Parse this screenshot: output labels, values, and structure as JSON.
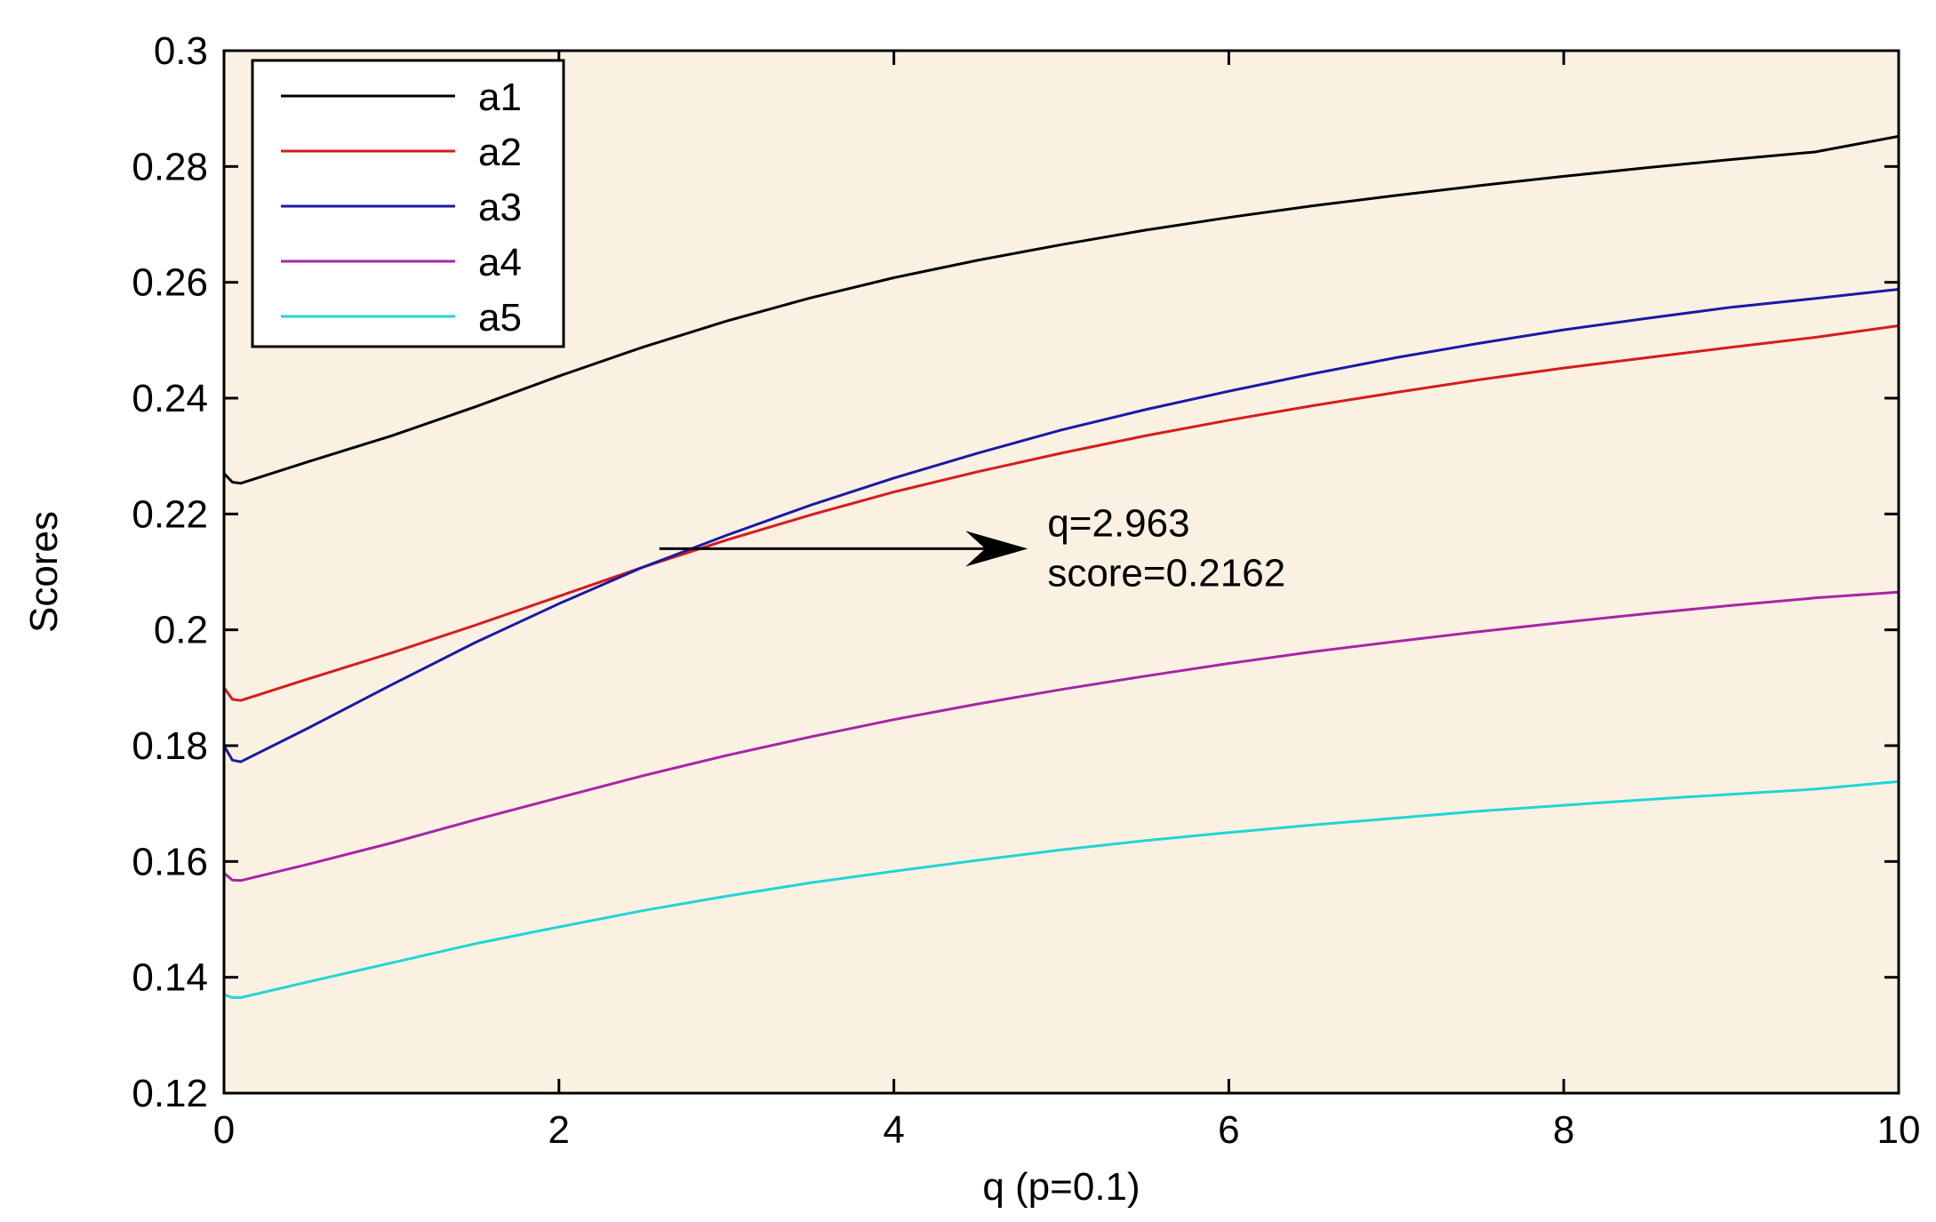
{
  "chart_data": {
    "type": "line",
    "xlabel": "q (p=0.1)",
    "ylabel": "Scores",
    "xlim": [
      0,
      10
    ],
    "ylim": [
      0.12,
      0.3
    ],
    "xticks": [
      0,
      2,
      4,
      6,
      8,
      10
    ],
    "yticks": [
      0.12,
      0.14,
      0.16,
      0.18,
      0.2,
      0.22,
      0.24,
      0.26,
      0.28,
      0.3
    ],
    "xtick_labels": [
      "0",
      "2",
      "4",
      "6",
      "8",
      "10"
    ],
    "ytick_labels": [
      "0.12",
      "0.14",
      "0.16",
      "0.18",
      "0.2",
      "0.22",
      "0.24",
      "0.26",
      "0.28",
      "0.3"
    ],
    "grid": false,
    "box": true,
    "legend_position": "top-left",
    "background_color": "#fbf1e3",
    "x": [
      0,
      0.05,
      0.1,
      0.5,
      1,
      1.5,
      2,
      2.5,
      3,
      3.5,
      4,
      4.5,
      5,
      5.5,
      6,
      6.5,
      7,
      7.5,
      8,
      8.5,
      9,
      9.5,
      10
    ],
    "series": [
      {
        "name": "a1",
        "color": "#000000",
        "values": [
          0.227,
          0.2255,
          0.2253,
          0.229,
          0.2335,
          0.2385,
          0.2438,
          0.2488,
          0.2533,
          0.2573,
          0.2608,
          0.2638,
          0.2665,
          0.269,
          0.2712,
          0.2732,
          0.275,
          0.2767,
          0.2783,
          0.2798,
          0.2812,
          0.2825,
          0.2852
        ]
      },
      {
        "name": "a2",
        "color": "#d81b1b",
        "values": [
          0.19,
          0.188,
          0.1878,
          0.1915,
          0.196,
          0.2008,
          0.2058,
          0.2108,
          0.2155,
          0.2198,
          0.2238,
          0.2273,
          0.2305,
          0.2335,
          0.2362,
          0.2387,
          0.241,
          0.2432,
          0.2452,
          0.247,
          0.2488,
          0.2505,
          0.2525
        ]
      },
      {
        "name": "a3",
        "color": "#1a1aa6",
        "values": [
          0.18,
          0.1775,
          0.1772,
          0.183,
          0.1905,
          0.1978,
          0.2045,
          0.2108,
          0.2163,
          0.2215,
          0.2262,
          0.2305,
          0.2345,
          0.238,
          0.2412,
          0.2442,
          0.247,
          0.2495,
          0.2518,
          0.2538,
          0.2557,
          0.2572,
          0.2588
        ]
      },
      {
        "name": "a4",
        "color": "#a626a6",
        "values": [
          0.158,
          0.1568,
          0.1567,
          0.1595,
          0.1632,
          0.1672,
          0.171,
          0.1748,
          0.1783,
          0.1815,
          0.1845,
          0.1872,
          0.1897,
          0.192,
          0.1942,
          0.1962,
          0.198,
          0.1997,
          0.2013,
          0.2028,
          0.2042,
          0.2055,
          0.2065
        ]
      },
      {
        "name": "a5",
        "color": "#1fd6d6",
        "values": [
          0.137,
          0.1365,
          0.1365,
          0.1392,
          0.1425,
          0.1458,
          0.1487,
          0.1515,
          0.154,
          0.1563,
          0.1583,
          0.1602,
          0.162,
          0.1636,
          0.165,
          0.1663,
          0.1675,
          0.1687,
          0.1697,
          0.1707,
          0.1716,
          0.1725,
          0.1738
        ]
      }
    ],
    "annotation": {
      "lines": [
        "q=2.963",
        "score=0.2162"
      ],
      "point": {
        "x": 2.6,
        "y": 0.214
      },
      "arrow_to": {
        "x": 4.8,
        "y": 0.214
      }
    }
  }
}
